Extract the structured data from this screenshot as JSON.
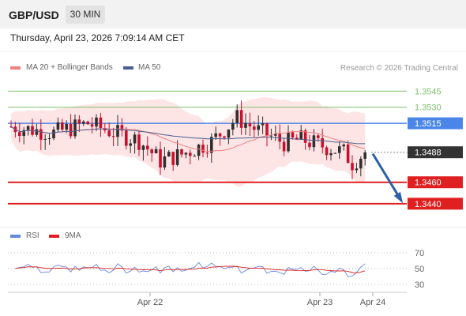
{
  "header": {
    "symbol": "GBP/USD",
    "timeframe": "30 MIN",
    "timestamp": "Thursday, April 23, 2026 7:09:14 AM CET"
  },
  "legend": {
    "ma20": "MA 20 + Bollinger Bands",
    "ma50": "MA 50",
    "credit": "Research © 2026 Trading Central",
    "rsi": "RSI",
    "rsi_ma": "9MA"
  },
  "colors": {
    "bullish": "#2f2f2f",
    "bearish": "#c8102e",
    "ma20": "#f08080",
    "band_fill": "#fde0e0",
    "ma50": "#4a5f8f",
    "resistance": "#7cc06a",
    "pivot": "#4a86e8",
    "support": "#e02020",
    "current": "#333333",
    "rsi": "#6688dd",
    "rsi_ma": "#e02020"
  },
  "chart_data": {
    "type": "candlestick",
    "price_ylim": [
      1.342,
      1.356
    ],
    "rsi_ylim": [
      20,
      80
    ],
    "x_tick_labels": [
      "Apr 22",
      "Apr 23",
      "Apr 24"
    ],
    "levels": [
      {
        "label": "1.3545",
        "value": 1.3545,
        "kind": "resistance"
      },
      {
        "label": "1.3530",
        "value": 1.353,
        "kind": "resistance"
      },
      {
        "label": "1.3515",
        "value": 1.3515,
        "kind": "pivot"
      },
      {
        "label": "1.3488",
        "value": 1.3488,
        "kind": "current"
      },
      {
        "label": "1.3460",
        "value": 1.346,
        "kind": "support"
      },
      {
        "label": "1.3440",
        "value": 1.344,
        "kind": "support"
      }
    ],
    "rsi_levels": [
      70,
      50,
      30
    ],
    "rsi_level_labels": [
      "70",
      "50",
      "30"
    ],
    "forecast_arrow": {
      "from": 1.3488,
      "to": 1.344
    }
  }
}
